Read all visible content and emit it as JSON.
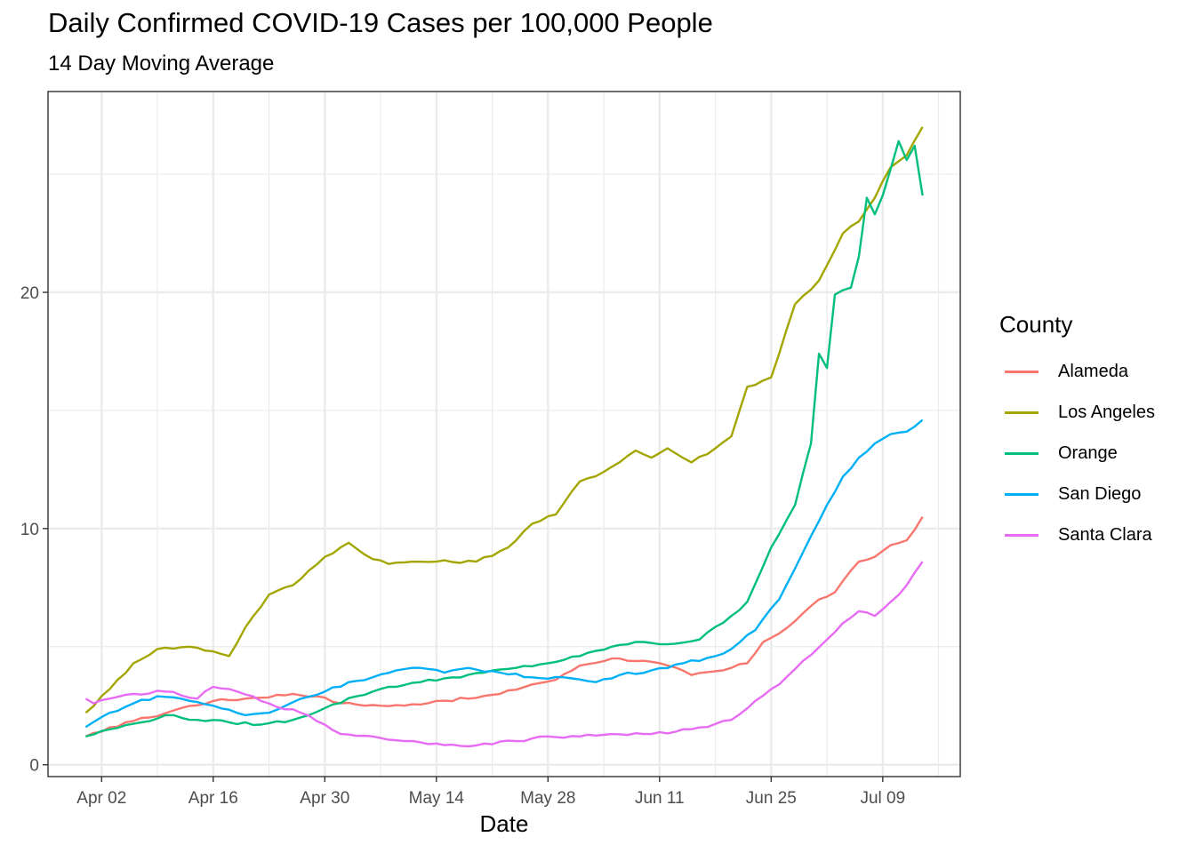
{
  "chart_data": {
    "type": "line",
    "title": "Daily Confirmed COVID-19 Cases per 100,000 People",
    "subtitle": "14 Day Moving Average",
    "xlabel": "Date",
    "ylabel": "",
    "x_tick_labels": [
      "Apr 02",
      "Apr 16",
      "Apr 30",
      "May 14",
      "May 28",
      "Jun 11",
      "Jun 25",
      "Jul 09"
    ],
    "y_ticks": [
      0,
      10,
      20
    ],
    "ylim": [
      -0.5,
      28.5
    ],
    "x_start": "2020-03-31",
    "x_end": "2020-07-14",
    "grid": true,
    "legend_title": "County",
    "legend_position": "right",
    "series": [
      {
        "name": "Alameda",
        "color": "#F8766D",
        "keypoints": [
          [
            "2020-03-31",
            1.2
          ],
          [
            "2020-04-02",
            1.4
          ],
          [
            "2020-04-05",
            1.8
          ],
          [
            "2020-04-08",
            2.0
          ],
          [
            "2020-04-12",
            2.4
          ],
          [
            "2020-04-16",
            2.7
          ],
          [
            "2020-04-20",
            2.8
          ],
          [
            "2020-04-26",
            3.0
          ],
          [
            "2020-04-29",
            2.9
          ],
          [
            "2020-05-02",
            2.6
          ],
          [
            "2020-05-07",
            2.5
          ],
          [
            "2020-05-10",
            2.5
          ],
          [
            "2020-05-14",
            2.7
          ],
          [
            "2020-05-18",
            2.8
          ],
          [
            "2020-05-22",
            3.0
          ],
          [
            "2020-05-26",
            3.4
          ],
          [
            "2020-05-29",
            3.6
          ],
          [
            "2020-06-01",
            4.2
          ],
          [
            "2020-06-05",
            4.5
          ],
          [
            "2020-06-09",
            4.4
          ],
          [
            "2020-06-12",
            4.2
          ],
          [
            "2020-06-15",
            3.8
          ],
          [
            "2020-06-19",
            4.0
          ],
          [
            "2020-06-22",
            4.3
          ],
          [
            "2020-06-24",
            5.2
          ],
          [
            "2020-06-27",
            5.8
          ],
          [
            "2020-07-01",
            7.0
          ],
          [
            "2020-07-03",
            7.3
          ],
          [
            "2020-07-06",
            8.6
          ],
          [
            "2020-07-08",
            8.8
          ],
          [
            "2020-07-10",
            9.3
          ],
          [
            "2020-07-12",
            9.5
          ],
          [
            "2020-07-14",
            10.5
          ]
        ]
      },
      {
        "name": "Los Angeles",
        "color": "#A3A500",
        "keypoints": [
          [
            "2020-03-31",
            2.2
          ],
          [
            "2020-04-03",
            3.2
          ],
          [
            "2020-04-06",
            4.3
          ],
          [
            "2020-04-09",
            4.9
          ],
          [
            "2020-04-13",
            5.0
          ],
          [
            "2020-04-16",
            4.8
          ],
          [
            "2020-04-18",
            4.6
          ],
          [
            "2020-04-20",
            5.8
          ],
          [
            "2020-04-23",
            7.2
          ],
          [
            "2020-04-26",
            7.6
          ],
          [
            "2020-04-30",
            8.8
          ],
          [
            "2020-05-03",
            9.4
          ],
          [
            "2020-05-05",
            8.9
          ],
          [
            "2020-05-08",
            8.5
          ],
          [
            "2020-05-11",
            8.6
          ],
          [
            "2020-05-14",
            8.6
          ],
          [
            "2020-05-19",
            8.6
          ],
          [
            "2020-05-23",
            9.2
          ],
          [
            "2020-05-26",
            10.2
          ],
          [
            "2020-05-29",
            10.6
          ],
          [
            "2020-06-01",
            12.0
          ],
          [
            "2020-06-04",
            12.4
          ],
          [
            "2020-06-08",
            13.3
          ],
          [
            "2020-06-10",
            13.0
          ],
          [
            "2020-06-12",
            13.4
          ],
          [
            "2020-06-15",
            12.8
          ],
          [
            "2020-06-18",
            13.4
          ],
          [
            "2020-06-20",
            13.9
          ],
          [
            "2020-06-22",
            16.0
          ],
          [
            "2020-06-25",
            16.4
          ],
          [
            "2020-06-28",
            19.5
          ],
          [
            "2020-07-01",
            20.5
          ],
          [
            "2020-07-04",
            22.5
          ],
          [
            "2020-07-06",
            23.0
          ],
          [
            "2020-07-08",
            24.0
          ],
          [
            "2020-07-10",
            25.3
          ],
          [
            "2020-07-12",
            25.8
          ],
          [
            "2020-07-14",
            27.0
          ]
        ]
      },
      {
        "name": "Orange",
        "color": "#00BF7D",
        "keypoints": [
          [
            "2020-03-31",
            1.2
          ],
          [
            "2020-04-03",
            1.5
          ],
          [
            "2020-04-07",
            1.8
          ],
          [
            "2020-04-10",
            2.1
          ],
          [
            "2020-04-14",
            1.9
          ],
          [
            "2020-04-18",
            1.8
          ],
          [
            "2020-04-22",
            1.7
          ],
          [
            "2020-04-26",
            1.9
          ],
          [
            "2020-04-30",
            2.4
          ],
          [
            "2020-05-04",
            2.9
          ],
          [
            "2020-05-08",
            3.3
          ],
          [
            "2020-05-12",
            3.5
          ],
          [
            "2020-05-16",
            3.7
          ],
          [
            "2020-05-20",
            3.9
          ],
          [
            "2020-05-24",
            4.1
          ],
          [
            "2020-05-28",
            4.3
          ],
          [
            "2020-06-01",
            4.6
          ],
          [
            "2020-06-05",
            5.0
          ],
          [
            "2020-06-09",
            5.2
          ],
          [
            "2020-06-12",
            5.1
          ],
          [
            "2020-06-16",
            5.3
          ],
          [
            "2020-06-20",
            6.3
          ],
          [
            "2020-06-22",
            6.9
          ],
          [
            "2020-06-25",
            9.2
          ],
          [
            "2020-06-28",
            11.0
          ],
          [
            "2020-06-30",
            13.6
          ],
          [
            "2020-07-01",
            17.4
          ],
          [
            "2020-07-02",
            16.8
          ],
          [
            "2020-07-03",
            19.9
          ],
          [
            "2020-07-05",
            20.2
          ],
          [
            "2020-07-06",
            21.5
          ],
          [
            "2020-07-07",
            24.0
          ],
          [
            "2020-07-08",
            23.3
          ],
          [
            "2020-07-09",
            24.1
          ],
          [
            "2020-07-11",
            26.4
          ],
          [
            "2020-07-12",
            25.6
          ],
          [
            "2020-07-13",
            26.2
          ],
          [
            "2020-07-14",
            24.1
          ]
        ]
      },
      {
        "name": "San Diego",
        "color": "#00B0F6",
        "keypoints": [
          [
            "2020-03-31",
            1.6
          ],
          [
            "2020-04-03",
            2.2
          ],
          [
            "2020-04-06",
            2.6
          ],
          [
            "2020-04-09",
            2.9
          ],
          [
            "2020-04-12",
            2.8
          ],
          [
            "2020-04-16",
            2.5
          ],
          [
            "2020-04-20",
            2.1
          ],
          [
            "2020-04-23",
            2.2
          ],
          [
            "2020-04-27",
            2.8
          ],
          [
            "2020-04-30",
            3.1
          ],
          [
            "2020-05-03",
            3.5
          ],
          [
            "2020-05-06",
            3.7
          ],
          [
            "2020-05-09",
            4.0
          ],
          [
            "2020-05-12",
            4.1
          ],
          [
            "2020-05-15",
            3.9
          ],
          [
            "2020-05-18",
            4.1
          ],
          [
            "2020-05-22",
            3.9
          ],
          [
            "2020-05-26",
            3.7
          ],
          [
            "2020-05-30",
            3.7
          ],
          [
            "2020-06-03",
            3.5
          ],
          [
            "2020-06-06",
            3.8
          ],
          [
            "2020-06-10",
            4.0
          ],
          [
            "2020-06-14",
            4.3
          ],
          [
            "2020-06-18",
            4.6
          ],
          [
            "2020-06-20",
            4.9
          ],
          [
            "2020-06-23",
            5.7
          ],
          [
            "2020-06-26",
            7.0
          ],
          [
            "2020-06-29",
            9.0
          ],
          [
            "2020-07-02",
            11.0
          ],
          [
            "2020-07-04",
            12.2
          ],
          [
            "2020-07-06",
            13.0
          ],
          [
            "2020-07-08",
            13.6
          ],
          [
            "2020-07-10",
            14.0
          ],
          [
            "2020-07-12",
            14.1
          ],
          [
            "2020-07-14",
            14.6
          ]
        ]
      },
      {
        "name": "Santa Clara",
        "color": "#E76BF3",
        "keypoints": [
          [
            "2020-03-31",
            2.8
          ],
          [
            "2020-04-01",
            2.6
          ],
          [
            "2020-04-03",
            2.8
          ],
          [
            "2020-04-06",
            3.0
          ],
          [
            "2020-04-10",
            3.1
          ],
          [
            "2020-04-14",
            2.8
          ],
          [
            "2020-04-16",
            3.3
          ],
          [
            "2020-04-19",
            3.1
          ],
          [
            "2020-04-23",
            2.6
          ],
          [
            "2020-04-27",
            2.2
          ],
          [
            "2020-04-30",
            1.7
          ],
          [
            "2020-05-02",
            1.3
          ],
          [
            "2020-05-06",
            1.2
          ],
          [
            "2020-05-10",
            1.0
          ],
          [
            "2020-05-14",
            0.9
          ],
          [
            "2020-05-17",
            0.8
          ],
          [
            "2020-05-20",
            0.9
          ],
          [
            "2020-05-24",
            1.0
          ],
          [
            "2020-05-28",
            1.2
          ],
          [
            "2020-06-01",
            1.2
          ],
          [
            "2020-06-05",
            1.3
          ],
          [
            "2020-06-09",
            1.3
          ],
          [
            "2020-06-13",
            1.4
          ],
          [
            "2020-06-17",
            1.6
          ],
          [
            "2020-06-20",
            1.9
          ],
          [
            "2020-06-23",
            2.7
          ],
          [
            "2020-06-26",
            3.4
          ],
          [
            "2020-06-29",
            4.4
          ],
          [
            "2020-07-02",
            5.3
          ],
          [
            "2020-07-04",
            6.0
          ],
          [
            "2020-07-06",
            6.5
          ],
          [
            "2020-07-08",
            6.3
          ],
          [
            "2020-07-10",
            6.9
          ],
          [
            "2020-07-12",
            7.6
          ],
          [
            "2020-07-14",
            8.6
          ]
        ]
      }
    ]
  }
}
